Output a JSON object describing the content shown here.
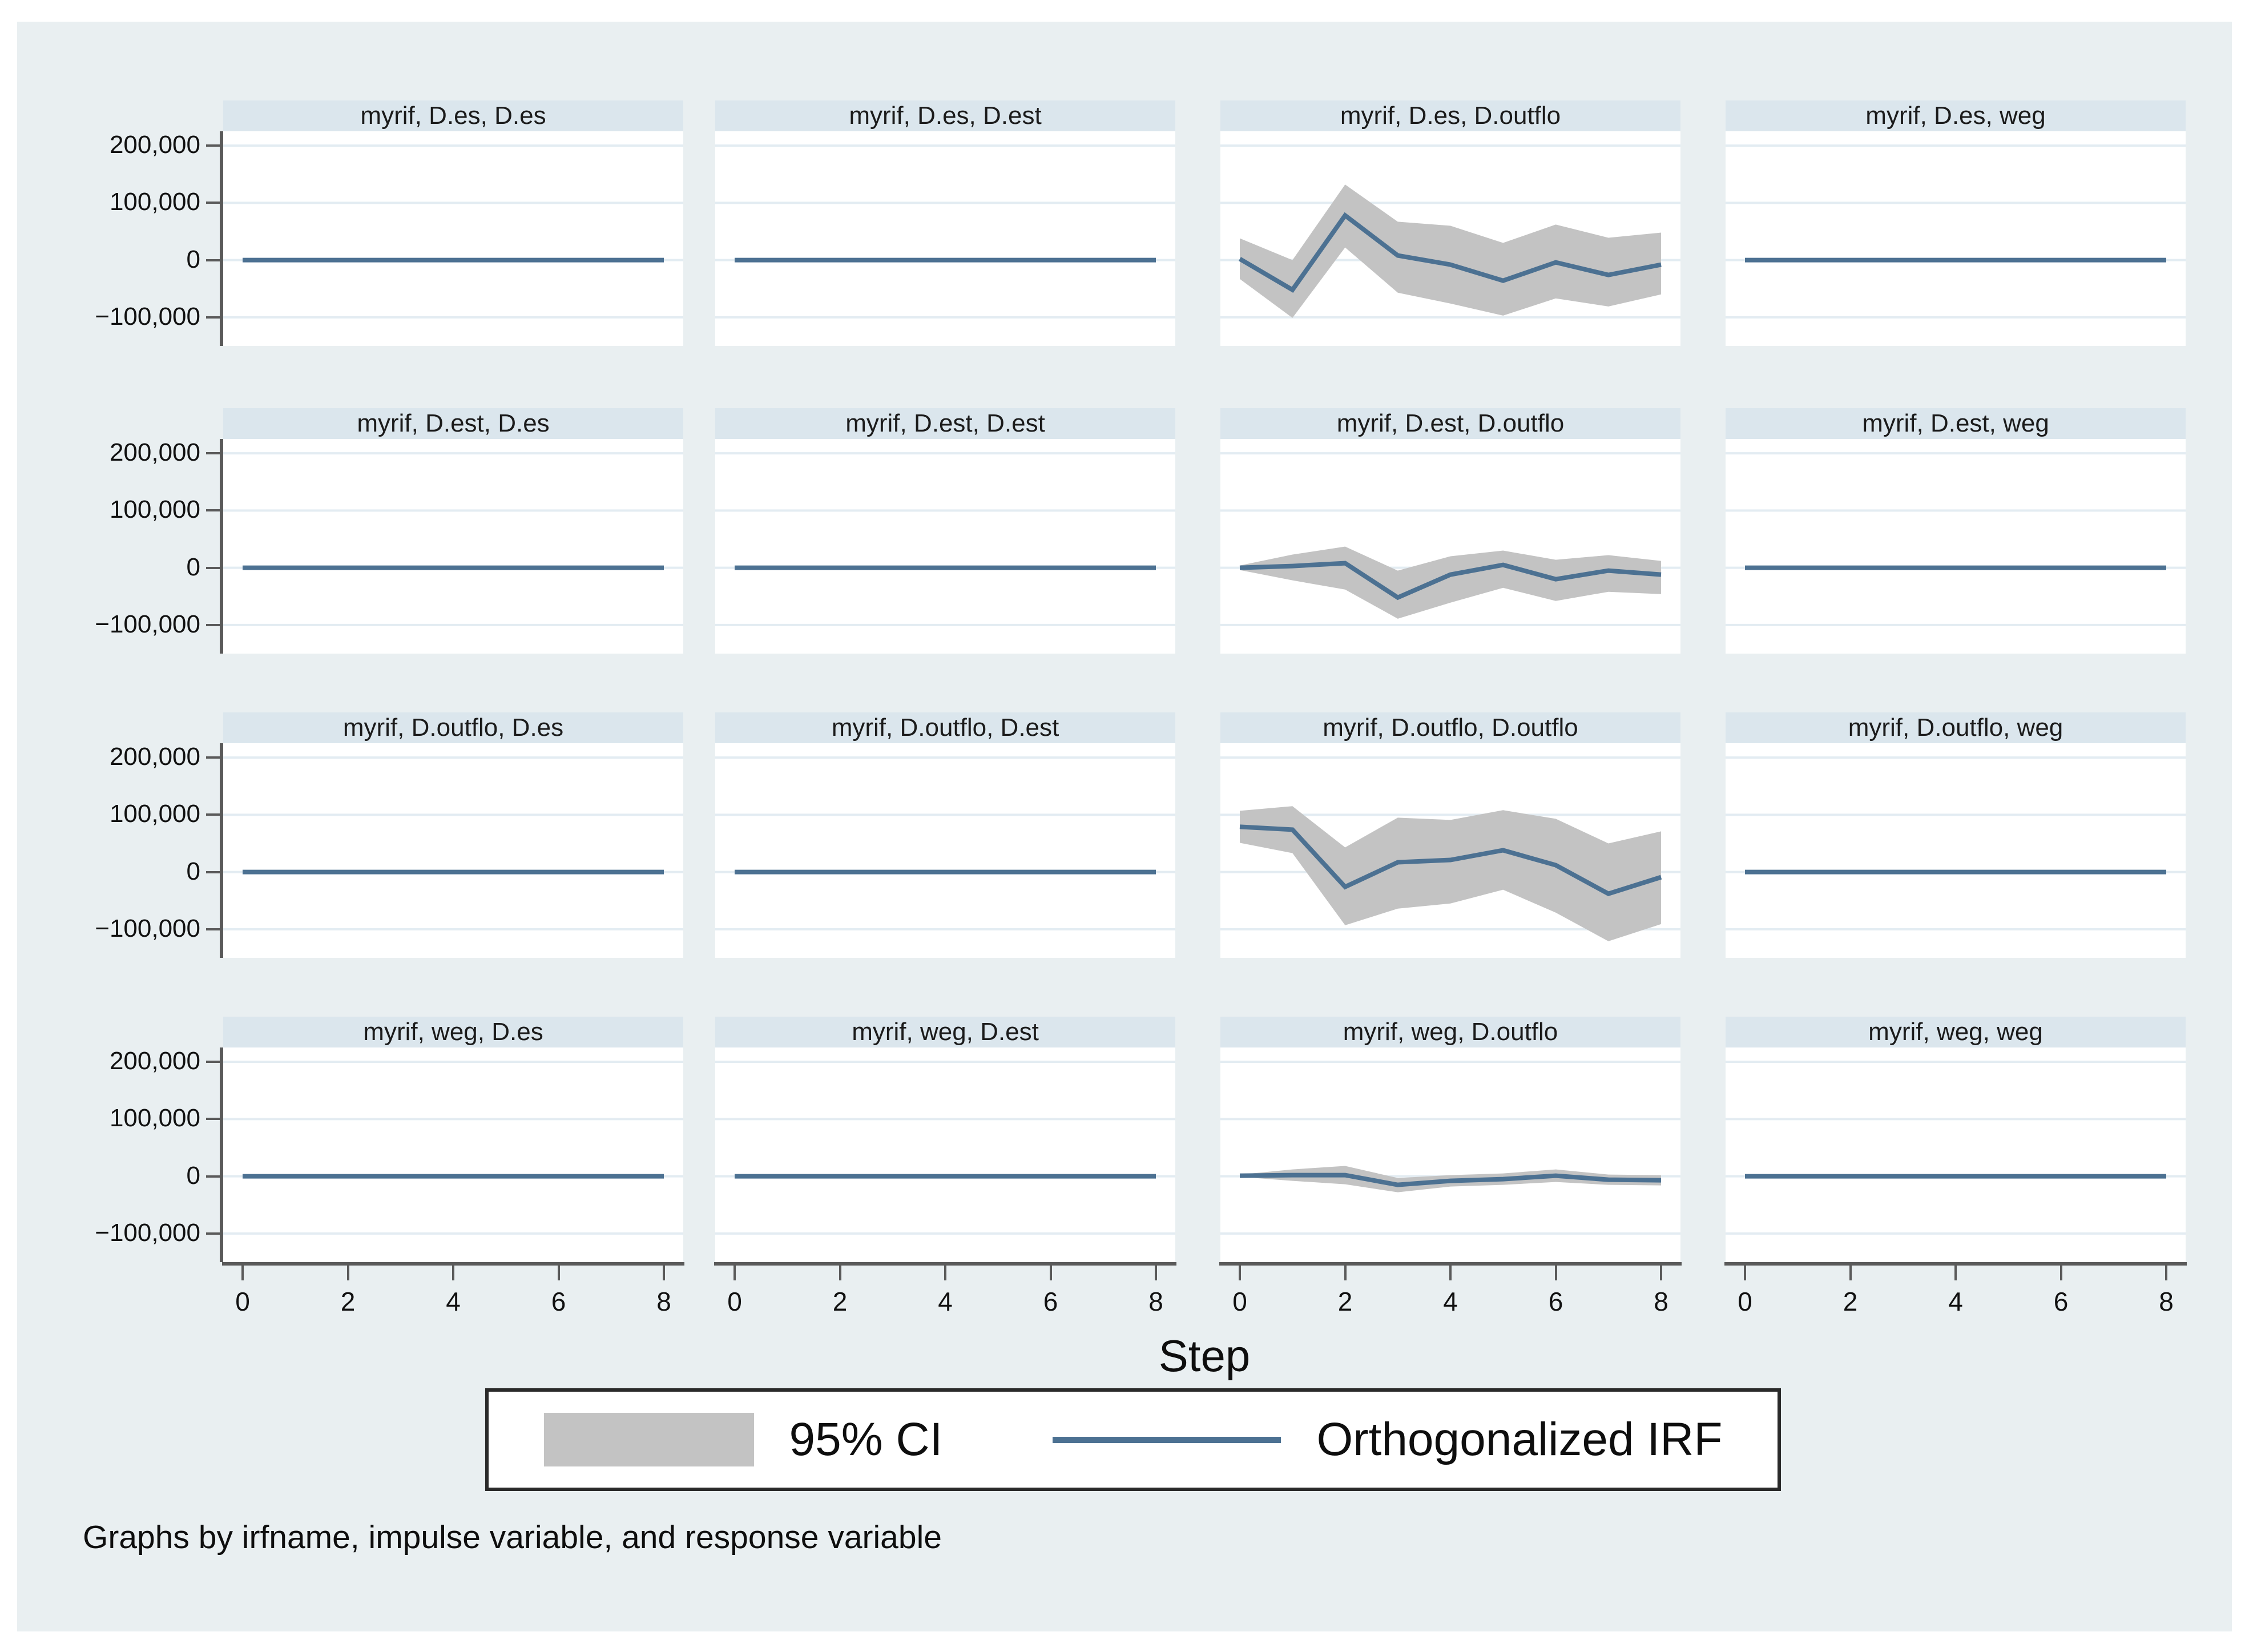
{
  "figure": {
    "xlabel": "Step",
    "caption": "Graphs by irfname, impulse variable, and response variable",
    "legend": [
      {
        "swatch": "ci-band",
        "label": "95% CI"
      },
      {
        "swatch": "irf-line",
        "label": "Orthogonalized IRF"
      }
    ],
    "y_ticks": {
      "values": [
        200000,
        100000,
        0,
        -100000
      ],
      "labels": [
        "200,000",
        "100,000",
        "0",
        "−100,000"
      ]
    },
    "x_ticks": {
      "values": [
        0,
        2,
        4,
        6,
        8
      ],
      "labels": [
        "0",
        "2",
        "4",
        "6",
        "8"
      ]
    },
    "ylim": [
      -150000,
      225000
    ],
    "xlim": [
      0,
      8
    ],
    "colors": {
      "background": "#e9eff1",
      "panel_title_bg": "#dbe6ed",
      "plot_bg": "#ffffff",
      "grid": "#e3ecf2",
      "irf_line": "#4c7192",
      "ci_band": "#c3c3c3",
      "axis": "#5a5a5a",
      "text": "#111111"
    }
  },
  "chart_data": [
    {
      "type": "line",
      "title": "myrif, D.es, D.es",
      "irfname": "myrif",
      "impulse": "D.es",
      "response": "D.es",
      "x": [
        0,
        1,
        2,
        3,
        4,
        5,
        6,
        7,
        8
      ],
      "irf": [
        0,
        0,
        0,
        0,
        0,
        0,
        0,
        0,
        0
      ],
      "ci_upper": null,
      "ci_lower": null
    },
    {
      "type": "line",
      "title": "myrif, D.es, D.est",
      "irfname": "myrif",
      "impulse": "D.es",
      "response": "D.est",
      "x": [
        0,
        1,
        2,
        3,
        4,
        5,
        6,
        7,
        8
      ],
      "irf": [
        0,
        0,
        0,
        0,
        0,
        0,
        0,
        0,
        0
      ],
      "ci_upper": null,
      "ci_lower": null
    },
    {
      "type": "line",
      "title": "myrif, D.es, D.outflo",
      "irfname": "myrif",
      "impulse": "D.es",
      "response": "D.outflo",
      "x": [
        0,
        1,
        2,
        3,
        4,
        5,
        6,
        7,
        8
      ],
      "irf": [
        2000,
        -52000,
        78000,
        8000,
        -8000,
        -36000,
        -4000,
        -26000,
        -8000
      ],
      "ci_upper": [
        38000,
        0,
        132000,
        67000,
        60000,
        30000,
        62000,
        39000,
        48000
      ],
      "ci_lower": [
        -33000,
        -101000,
        22000,
        -57000,
        -76000,
        -97000,
        -67000,
        -81000,
        -60000
      ]
    },
    {
      "type": "line",
      "title": "myrif, D.es, weg",
      "irfname": "myrif",
      "impulse": "D.es",
      "response": "weg",
      "x": [
        0,
        1,
        2,
        3,
        4,
        5,
        6,
        7,
        8
      ],
      "irf": [
        0,
        0,
        0,
        0,
        0,
        0,
        0,
        0,
        0
      ],
      "ci_upper": null,
      "ci_lower": null
    },
    {
      "type": "line",
      "title": "myrif, D.est, D.es",
      "irfname": "myrif",
      "impulse": "D.est",
      "response": "D.es",
      "x": [
        0,
        1,
        2,
        3,
        4,
        5,
        6,
        7,
        8
      ],
      "irf": [
        0,
        0,
        0,
        0,
        0,
        0,
        0,
        0,
        0
      ],
      "ci_upper": null,
      "ci_lower": null
    },
    {
      "type": "line",
      "title": "myrif, D.est, D.est",
      "irfname": "myrif",
      "impulse": "D.est",
      "response": "D.est",
      "x": [
        0,
        1,
        2,
        3,
        4,
        5,
        6,
        7,
        8
      ],
      "irf": [
        0,
        0,
        0,
        0,
        0,
        0,
        0,
        0,
        0
      ],
      "ci_upper": null,
      "ci_lower": null
    },
    {
      "type": "line",
      "title": "myrif, D.est, D.outflo",
      "irfname": "myrif",
      "impulse": "D.est",
      "response": "D.outflo",
      "x": [
        0,
        1,
        2,
        3,
        4,
        5,
        6,
        7,
        8
      ],
      "irf": [
        0,
        3000,
        8000,
        -52000,
        -12000,
        5000,
        -20000,
        -5000,
        -12000
      ],
      "ci_upper": [
        4000,
        23000,
        37000,
        -5000,
        20000,
        30000,
        14000,
        22000,
        12000
      ],
      "ci_lower": [
        -4000,
        -22000,
        -38000,
        -89000,
        -61000,
        -35000,
        -58000,
        -42000,
        -46000
      ]
    },
    {
      "type": "line",
      "title": "myrif, D.est, weg",
      "irfname": "myrif",
      "impulse": "D.est",
      "response": "weg",
      "x": [
        0,
        1,
        2,
        3,
        4,
        5,
        6,
        7,
        8
      ],
      "irf": [
        0,
        0,
        0,
        0,
        0,
        0,
        0,
        0,
        0
      ],
      "ci_upper": null,
      "ci_lower": null
    },
    {
      "type": "line",
      "title": "myrif, D.outflo, D.es",
      "irfname": "myrif",
      "impulse": "D.outflo",
      "response": "D.es",
      "x": [
        0,
        1,
        2,
        3,
        4,
        5,
        6,
        7,
        8
      ],
      "irf": [
        0,
        0,
        0,
        0,
        0,
        0,
        0,
        0,
        0
      ],
      "ci_upper": null,
      "ci_lower": null
    },
    {
      "type": "line",
      "title": "myrif, D.outflo, D.est",
      "irfname": "myrif",
      "impulse": "D.outflo",
      "response": "D.est",
      "x": [
        0,
        1,
        2,
        3,
        4,
        5,
        6,
        7,
        8
      ],
      "irf": [
        0,
        0,
        0,
        0,
        0,
        0,
        0,
        0,
        0
      ],
      "ci_upper": null,
      "ci_lower": null
    },
    {
      "type": "line",
      "title": "myrif, D.outflo, D.outflo",
      "irfname": "myrif",
      "impulse": "D.outflo",
      "response": "D.outflo",
      "x": [
        0,
        1,
        2,
        3,
        4,
        5,
        6,
        7,
        8
      ],
      "irf": [
        79000,
        74000,
        -26000,
        17000,
        21000,
        38000,
        12000,
        -38000,
        -9000
      ],
      "ci_upper": [
        107000,
        115000,
        43000,
        95000,
        91000,
        108000,
        93000,
        50000,
        71000
      ],
      "ci_lower": [
        51000,
        33000,
        -93000,
        -64000,
        -55000,
        -31000,
        -71000,
        -121000,
        -91000
      ]
    },
    {
      "type": "line",
      "title": "myrif, D.outflo, weg",
      "irfname": "myrif",
      "impulse": "D.outflo",
      "response": "weg",
      "x": [
        0,
        1,
        2,
        3,
        4,
        5,
        6,
        7,
        8
      ],
      "irf": [
        0,
        0,
        0,
        0,
        0,
        0,
        0,
        0,
        0
      ],
      "ci_upper": null,
      "ci_lower": null
    },
    {
      "type": "line",
      "title": "myrif, weg, D.es",
      "irfname": "myrif",
      "impulse": "weg",
      "response": "D.es",
      "x": [
        0,
        1,
        2,
        3,
        4,
        5,
        6,
        7,
        8
      ],
      "irf": [
        0,
        0,
        0,
        0,
        0,
        0,
        0,
        0,
        0
      ],
      "ci_upper": null,
      "ci_lower": null
    },
    {
      "type": "line",
      "title": "myrif, weg, D.est",
      "irfname": "myrif",
      "impulse": "weg",
      "response": "D.est",
      "x": [
        0,
        1,
        2,
        3,
        4,
        5,
        6,
        7,
        8
      ],
      "irf": [
        0,
        0,
        0,
        0,
        0,
        0,
        0,
        0,
        0
      ],
      "ci_upper": null,
      "ci_lower": null
    },
    {
      "type": "line",
      "title": "myrif, weg, D.outflo",
      "irfname": "myrif",
      "impulse": "weg",
      "response": "D.outflo",
      "x": [
        0,
        1,
        2,
        3,
        4,
        5,
        6,
        7,
        8
      ],
      "irf": [
        1000,
        2000,
        2000,
        -15000,
        -8000,
        -5000,
        1000,
        -6000,
        -7000
      ],
      "ci_upper": [
        3000,
        12000,
        18000,
        -3000,
        2000,
        5000,
        12000,
        3000,
        2000
      ],
      "ci_lower": [
        -1000,
        -8000,
        -14000,
        -28000,
        -18000,
        -15000,
        -10000,
        -15000,
        -16000
      ]
    },
    {
      "type": "line",
      "title": "myrif, weg, weg",
      "irfname": "myrif",
      "impulse": "weg",
      "response": "weg",
      "x": [
        0,
        1,
        2,
        3,
        4,
        5,
        6,
        7,
        8
      ],
      "irf": [
        0,
        0,
        0,
        0,
        0,
        0,
        0,
        0,
        0
      ],
      "ci_upper": null,
      "ci_lower": null
    }
  ]
}
